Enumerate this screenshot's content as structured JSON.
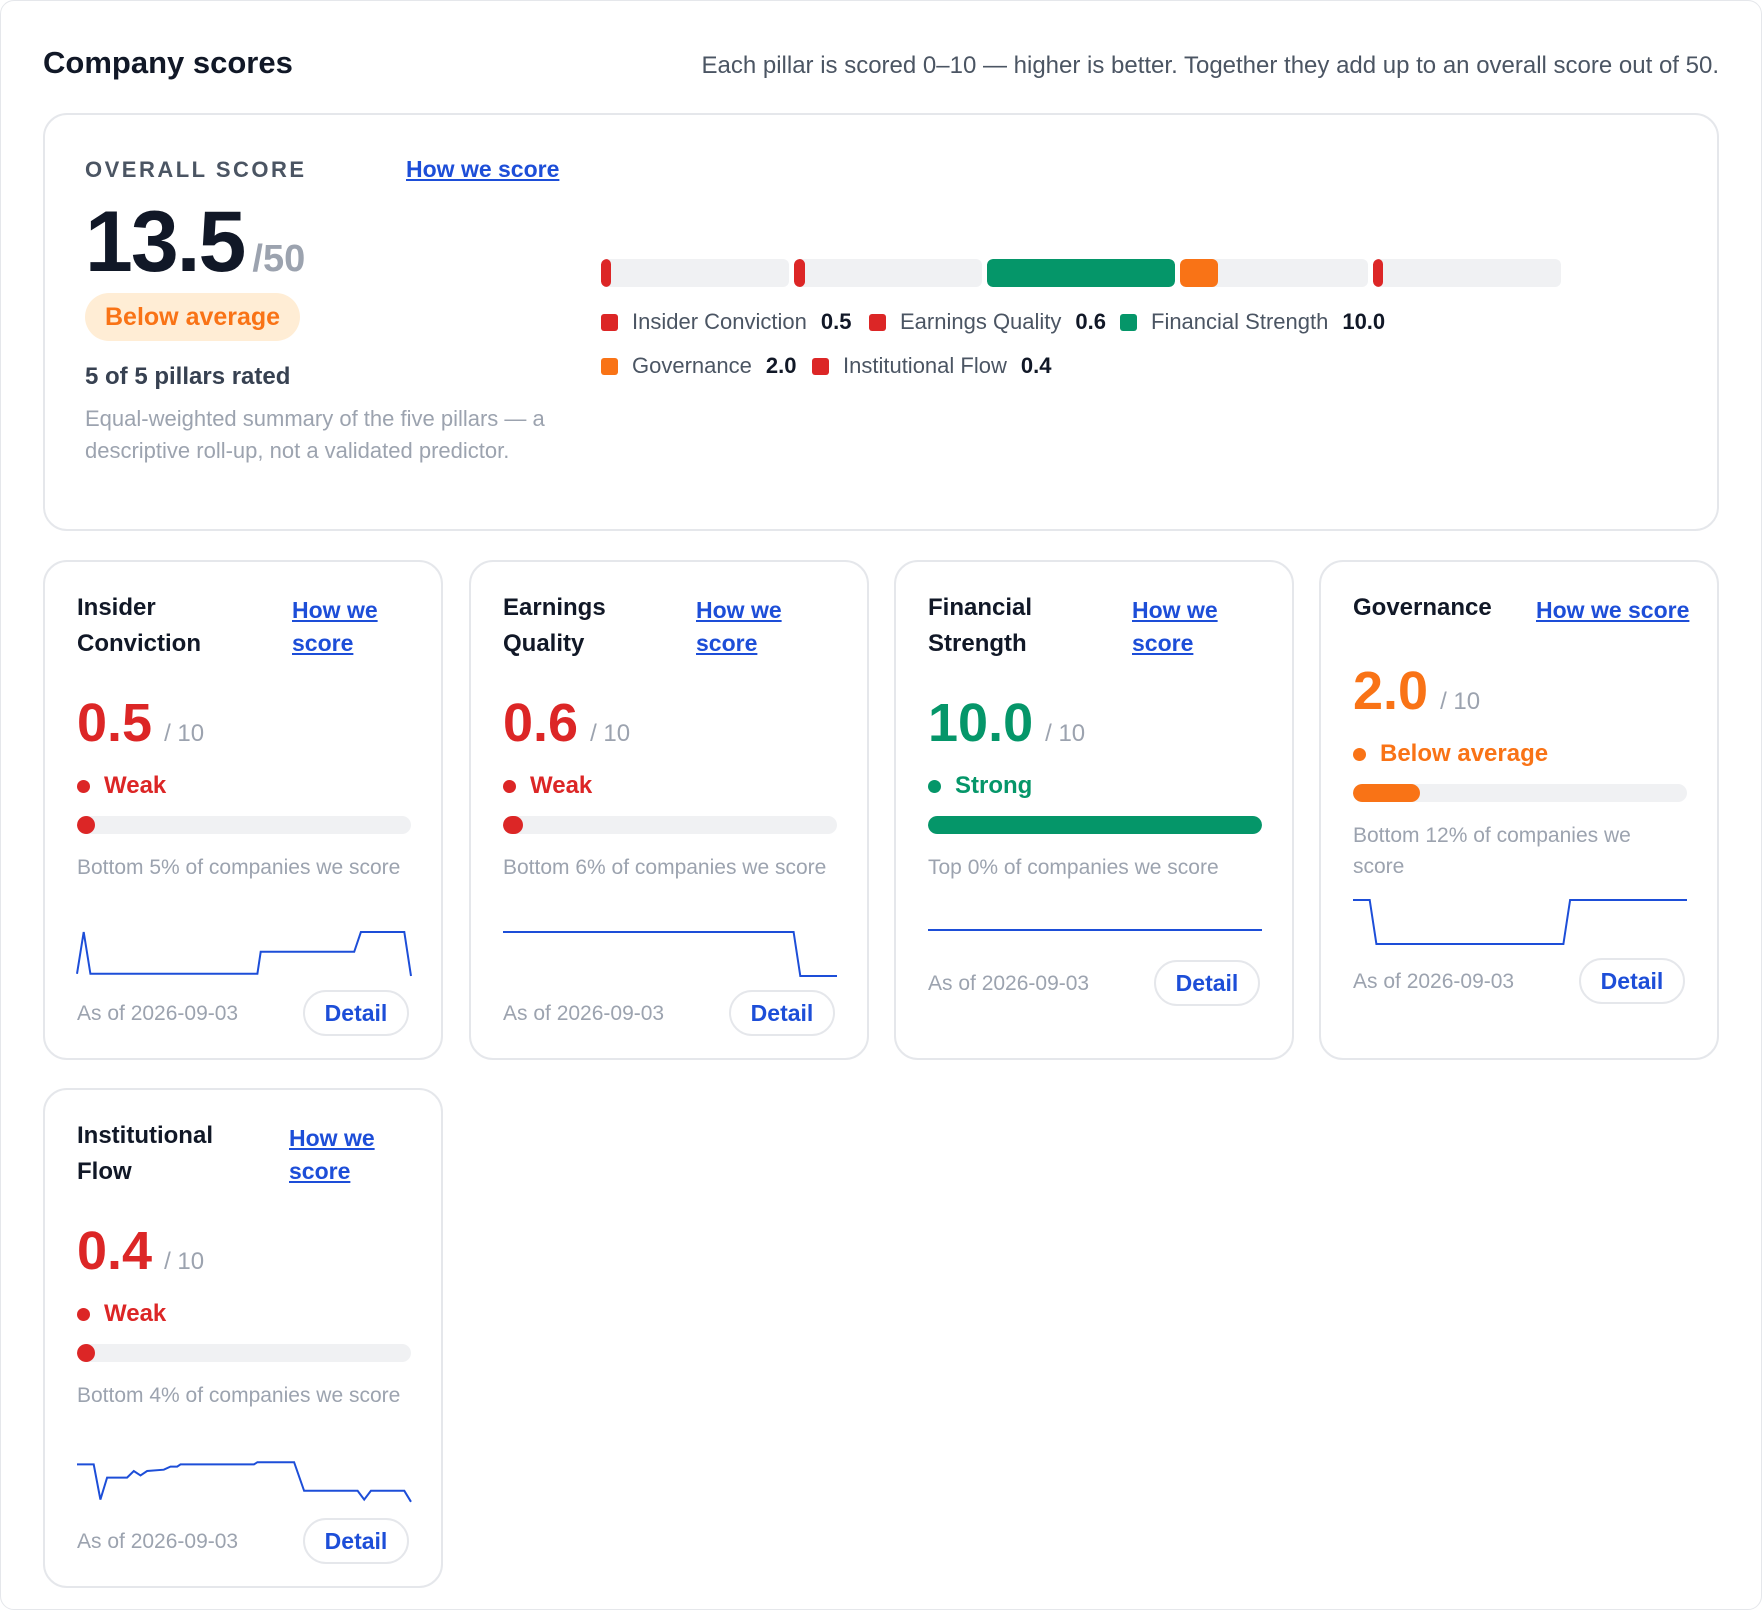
{
  "header": {
    "title": "Company scores",
    "subtitle": "Each pillar is scored 0–10 — higher is better. Together they add up to an overall score out of 50."
  },
  "overall": {
    "label": "OVERALL SCORE",
    "link": "How we score",
    "value": "13.5",
    "max": "/50",
    "badge": "Below average",
    "rated": "5 of 5 pillars rated",
    "description": "Equal-weighted summary of the five pillars — a descriptive roll-up, not a validated predictor.",
    "scale_max": 10,
    "legend": [
      {
        "name": "Insider Conviction",
        "value": "0.5",
        "score": 0.5,
        "color": "#dc2626"
      },
      {
        "name": "Earnings Quality",
        "value": "0.6",
        "score": 0.6,
        "color": "#dc2626"
      },
      {
        "name": "Financial Strength",
        "value": "10.0",
        "score": 10.0,
        "color": "#059669"
      },
      {
        "name": "Governance",
        "value": "2.0",
        "score": 2.0,
        "color": "#f97316"
      },
      {
        "name": "Institutional Flow",
        "value": "0.4",
        "score": 0.4,
        "color": "#dc2626"
      }
    ]
  },
  "pillars": [
    {
      "title": "Insider Conviction",
      "link": "How we score",
      "value": "0.5",
      "max": "/ 10",
      "status": "Weak",
      "color": "#dc2626",
      "bar_fraction": 0.05,
      "percentile": "Bottom 5% of companies we score",
      "spark": [
        0.35,
        1.0,
        0.35,
        0.35,
        0.35,
        0.35,
        0.35,
        0.35,
        0.35,
        0.35,
        0.35,
        0.35,
        0.35,
        0.35,
        0.35,
        0.35,
        0.35,
        0.35,
        0.35,
        0.35,
        0.35,
        0.35,
        0.35,
        0.35,
        0.35,
        0.35,
        0.35,
        0.35,
        0.35,
        0.35,
        0.35,
        0.35,
        0.35,
        0.35,
        0.35,
        0.35,
        0.35,
        0.35,
        0.35,
        0.35,
        0.35,
        0.35,
        0.35,
        0.35,
        0.35,
        0.35,
        0.35,
        0.35,
        0.35,
        0.35,
        0.35,
        0.35,
        0.35,
        0.35,
        0.35,
        0.35,
        0.35,
        0.35,
        0.35,
        0.35,
        0.35,
        0.35,
        0.35,
        0.35,
        0.35,
        0.35,
        0.35,
        0.35,
        0.35,
        0.35,
        0.35,
        0.35,
        0.35,
        0.35,
        0.35,
        0.35,
        0.35,
        0.35,
        0.35,
        0.35,
        0.35,
        0.35,
        0.35,
        0.35,
        0.35,
        0.35,
        0.35,
        0.35,
        0.35,
        0.35,
        0.35,
        0.35,
        0.35,
        0.35,
        0.35,
        0.35,
        0.35,
        0.35,
        0.35,
        0.35,
        0.35,
        0.35,
        0.35,
        0.35,
        0.35,
        0.35,
        0.35,
        0.35,
        0.35,
        0.35,
        0.35,
        0.35,
        0.35,
        0.35,
        0.35,
        0.35,
        0.35,
        0.35,
        0.35,
        0.35,
        0.35,
        0.35,
        0.35,
        0.35,
        0.35,
        0.35,
        0.35,
        0.35,
        0.35,
        0.35,
        0.35,
        0.35,
        0.35,
        0.35,
        0.35,
        0.35,
        0.35,
        0.35,
        0.35,
        0.35,
        0.35,
        0.35,
        0.35,
        0.35,
        0.35,
        0.35,
        0.35,
        0.35,
        0.35,
        0.35,
        0.35,
        0.35,
        0.35,
        0.35,
        0.35,
        0.35,
        0.35,
        0.35,
        0.35,
        0.35,
        0.35,
        0.35,
        0.35,
        0.35,
        0.35,
        0.35,
        0.35,
        0.35,
        0.35,
        0.35,
        0.35,
        0.35,
        0.35,
        0.35,
        0.35,
        0.35,
        0.35,
        0.35,
        0.35,
        0.35,
        0.35,
        0.35,
        0.35,
        0.35,
        0.35,
        0.35,
        0.35,
        0.35,
        0.35,
        0.35,
        0.35,
        0.35,
        0.35,
        0.35,
        0.35,
        0.35,
        0.35,
        0.35,
        0.35,
        0.35,
        0.35,
        0.35,
        0.35,
        0.35,
        0.35,
        0.35,
        0.35,
        0.35,
        0.35,
        0.35,
        0.35,
        0.35,
        0.35,
        0.35,
        0.35,
        0.35,
        0.35,
        0.35,
        0.35,
        0.35,
        0.35,
        0.35,
        0.35,
        0.35,
        0.35,
        0.35,
        0.35,
        0.35,
        0.35,
        0.35,
        0.35,
        0.35,
        0.35,
        0.35,
        0.35,
        0.35,
        0.35,
        0.35,
        0.35,
        0.35,
        0.35,
        0.35,
        0.35,
        0.35,
        0.35,
        0.35,
        0.35,
        0.35,
        0.35,
        0.35,
        0.35,
        0.35,
        0.35,
        0.35,
        0.35,
        0.35,
        0.35,
        0.35,
        0.35,
        0.35,
        0.35,
        0.35,
        0.35,
        0.35,
        0.35,
        0.35,
        0.35,
        0.35,
        0.35,
        0.35,
        0.35,
        0.35,
        0.35,
        0.35,
        0.35,
        0.35,
        0.35,
        0.35,
        0.35,
        0.35,
        0.35,
        0.35,
        0.35,
        0.35,
        0.35,
        0.35,
        0.35,
        0.35,
        0.35,
        0.35,
        0.35,
        0.35,
        0.35,
        0.35,
        0.35,
        0.35,
        0.35,
        0.35,
        0.35,
        0.35,
        0.35,
        0.35,
        0.35,
        0.35,
        0.35,
        0.35,
        0.35,
        0.35,
        0.35,
        0.35,
        0.35,
        0.35,
        0.35,
        0.35,
        0.35,
        0.35,
        0.35,
        0.35,
        0.35,
        0.35,
        0.35,
        0.35,
        0.35,
        0.35,
        0.35
      ],
      "spark_steps": [
        [
          0.0,
          0.05
        ],
        [
          0.02,
          1.0
        ],
        [
          0.04,
          0.05
        ],
        [
          0.54,
          0.05
        ],
        [
          0.55,
          0.55
        ],
        [
          0.83,
          0.55
        ],
        [
          0.85,
          1.0
        ],
        [
          0.98,
          1.0
        ],
        [
          1.0,
          0.0
        ]
      ],
      "as_of": "As of 2026-09-03",
      "detail": "Detail"
    },
    {
      "title": "Earnings Quality",
      "link": "How we score",
      "value": "0.6",
      "max": "/ 10",
      "status": "Weak",
      "color": "#dc2626",
      "bar_fraction": 0.06,
      "percentile": "Bottom 6% of companies we score",
      "spark_steps": [
        [
          0.0,
          1.0
        ],
        [
          0.87,
          1.0
        ],
        [
          0.89,
          0.0
        ],
        [
          1.0,
          0.0
        ]
      ],
      "as_of": "As of 2026-09-03",
      "detail": "Detail"
    },
    {
      "title": "Financial Strength",
      "link": "How we score",
      "value": "10.0",
      "max": "/ 10",
      "status": "Strong",
      "color": "#059669",
      "bar_fraction": 1.0,
      "percentile": "Top 0% of companies we score",
      "spark_steps": [
        [
          0.0,
          0.5
        ],
        [
          1.0,
          0.5
        ]
      ],
      "as_of": "As of 2026-09-03",
      "detail": "Detail"
    },
    {
      "title": "Governance",
      "link": "How we score",
      "value": "2.0",
      "max": "/ 10",
      "status": "Below average",
      "color": "#f97316",
      "bar_fraction": 0.2,
      "percentile": "Bottom 12% of companies we score",
      "spark_steps": [
        [
          0.0,
          1.0
        ],
        [
          0.05,
          1.0
        ],
        [
          0.07,
          0.0
        ],
        [
          0.63,
          0.0
        ],
        [
          0.65,
          1.0
        ],
        [
          1.0,
          1.0
        ]
      ],
      "as_of": "As of 2026-09-03",
      "detail": "Detail"
    },
    {
      "title": "Institutional Flow",
      "link": "How we score",
      "value": "0.4",
      "max": "/ 10",
      "status": "Weak",
      "color": "#dc2626",
      "bar_fraction": 0.04,
      "percentile": "Bottom 4% of companies we score",
      "spark_steps": [
        [
          0.0,
          0.9
        ],
        [
          0.05,
          0.9
        ],
        [
          0.07,
          0.1
        ],
        [
          0.09,
          0.6
        ],
        [
          0.15,
          0.6
        ],
        [
          0.17,
          0.75
        ],
        [
          0.19,
          0.65
        ],
        [
          0.21,
          0.75
        ],
        [
          0.26,
          0.78
        ],
        [
          0.28,
          0.85
        ],
        [
          0.3,
          0.85
        ],
        [
          0.31,
          0.9
        ],
        [
          0.53,
          0.9
        ],
        [
          0.54,
          0.95
        ],
        [
          0.65,
          0.95
        ],
        [
          0.68,
          0.3
        ],
        [
          0.84,
          0.3
        ],
        [
          0.86,
          0.1
        ],
        [
          0.88,
          0.3
        ],
        [
          0.98,
          0.3
        ],
        [
          1.0,
          0.05
        ]
      ],
      "as_of": "As of 2026-09-03",
      "detail": "Detail"
    }
  ]
}
